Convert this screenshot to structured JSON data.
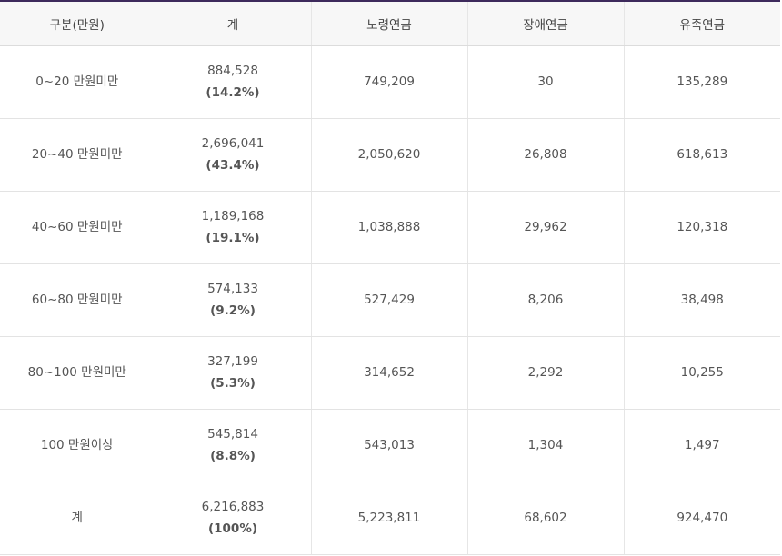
{
  "table": {
    "headers": [
      "구분(만원)",
      "계",
      "노령연금",
      "장애연금",
      "유족연금"
    ],
    "rows": [
      {
        "category": "0~20 만원미만",
        "total": "884,528",
        "pct": "(14.2%)",
        "old_age": "749,209",
        "disability": "30",
        "survivor": "135,289"
      },
      {
        "category": "20~40 만원미만",
        "total": "2,696,041",
        "pct": "(43.4%)",
        "old_age": "2,050,620",
        "disability": "26,808",
        "survivor": "618,613"
      },
      {
        "category": "40~60 만원미만",
        "total": "1,189,168",
        "pct": "(19.1%)",
        "old_age": "1,038,888",
        "disability": "29,962",
        "survivor": "120,318"
      },
      {
        "category": "60~80 만원미만",
        "total": "574,133",
        "pct": "(9.2%)",
        "old_age": "527,429",
        "disability": "8,206",
        "survivor": "38,498"
      },
      {
        "category": "80~100 만원미만",
        "total": "327,199",
        "pct": "(5.3%)",
        "old_age": "314,652",
        "disability": "2,292",
        "survivor": "10,255"
      },
      {
        "category": "100 만원이상",
        "total": "545,814",
        "pct": "(8.8%)",
        "old_age": "543,013",
        "disability": "1,304",
        "survivor": "1,497"
      },
      {
        "category": "계",
        "total": "6,216,883",
        "pct": "(100%)",
        "old_age": "5,223,811",
        "disability": "68,602",
        "survivor": "924,470"
      }
    ]
  },
  "colors": {
    "top_border": "#3d2a5c",
    "header_bg": "#f7f7f7",
    "text": "#555555"
  }
}
